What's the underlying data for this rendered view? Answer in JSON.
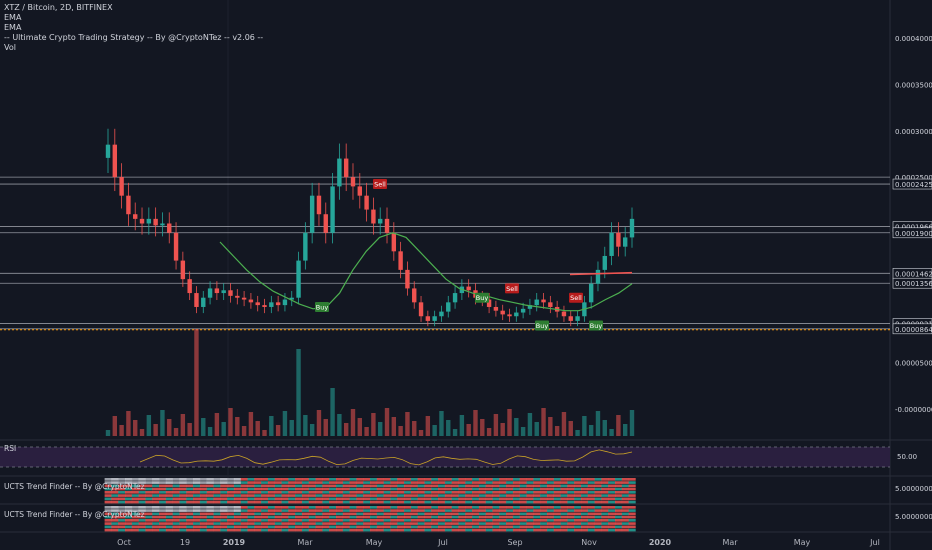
{
  "legend": {
    "symbol": "XTZ / Bitcoin, 2D, BITFINEX",
    "ind1": "EMA",
    "ind2": "EMA",
    "ind3": "-- Ultimate Crypto Trading Strategy -- By @CryptoNTez -- v2.06 --",
    "ind4": "Vol"
  },
  "panes": {
    "rsi": "RSI",
    "trend1": "UCTS Trend Finder -- By @CryptoNTez",
    "trend2": "UCTS Trend Finder -- By @CryptoNTez"
  },
  "colors": {
    "bg": "#131722",
    "up": "#26a69a",
    "down": "#ef5350",
    "ema": "#4caf50",
    "hline": "#b2b5be",
    "orange": "#ff9800",
    "rsi_band": "#2a1f3f",
    "rsi_line": "#c9a227"
  },
  "chart_data": {
    "type": "candlestick",
    "y_axis_labels": [
      "0.00040000",
      "0.00035000",
      "0.00030000",
      "0.00025000",
      "0.00024254",
      "0.00019668",
      "0.00019000",
      "0.00014629",
      "0.00013560",
      "0.00009211",
      "0.00008647",
      "0.00005000",
      "-0.00000000"
    ],
    "x_axis_labels": [
      "Oct",
      "19",
      "2019",
      "Mar",
      "May",
      "Jul",
      "Sep",
      "Nov",
      "2020",
      "Mar",
      "May",
      "Jul"
    ],
    "horizontal_levels": [
      0.00025,
      0.00024254,
      0.00019668,
      0.00019,
      0.00014629,
      0.0001356,
      9.211e-05,
      8.647e-05
    ],
    "rsi_axis_label": "50.00",
    "trend_axis_labels": [
      "5.00000000",
      "5.00000000"
    ],
    "signals": [
      {
        "label": "Sell",
        "type": "sell",
        "t": 0.00024254
      },
      {
        "label": "Buy",
        "type": "buy",
        "t": 0.00011
      },
      {
        "label": "Buy",
        "type": "buy",
        "t": 0.00012
      },
      {
        "label": "Sell",
        "type": "sell",
        "t": 0.00013
      },
      {
        "label": "Buy",
        "type": "buy",
        "t": 9e-05
      },
      {
        "label": "Sell",
        "type": "sell",
        "t": 0.00012
      },
      {
        "label": "Buy",
        "type": "buy",
        "t": 9e-05
      }
    ],
    "close_path": [
      [
        0.000285,
        1
      ],
      [
        0.00025,
        0
      ],
      [
        0.00023,
        0
      ],
      [
        0.00021,
        0
      ],
      [
        0.000205,
        1
      ],
      [
        0.0002,
        0
      ],
      [
        0.000205,
        1
      ],
      [
        0.000198,
        0
      ],
      [
        0.0002,
        1
      ],
      [
        0.00019,
        0
      ],
      [
        0.00016,
        0
      ],
      [
        0.00014,
        0
      ],
      [
        0.000125,
        0
      ],
      [
        0.00011,
        0
      ],
      [
        0.00012,
        1
      ],
      [
        0.00013,
        1
      ],
      [
        0.000125,
        0
      ],
      [
        0.000128,
        1
      ],
      [
        0.000122,
        0
      ],
      [
        0.00012,
        0
      ],
      [
        0.000118,
        0
      ],
      [
        0.000115,
        0
      ],
      [
        0.000112,
        0
      ],
      [
        0.00011,
        0
      ],
      [
        0.000115,
        1
      ],
      [
        0.000112,
        0
      ],
      [
        0.000118,
        1
      ],
      [
        0.00012,
        1
      ],
      [
        0.00016,
        1
      ],
      [
        0.00019,
        1
      ],
      [
        0.00023,
        1
      ],
      [
        0.00021,
        0
      ],
      [
        0.00019,
        0
      ],
      [
        0.00024,
        1
      ],
      [
        0.00027,
        1
      ],
      [
        0.00025,
        0
      ],
      [
        0.00024,
        0
      ],
      [
        0.00023,
        0
      ],
      [
        0.000215,
        0
      ],
      [
        0.0002,
        0
      ],
      [
        0.000205,
        1
      ],
      [
        0.00019,
        0
      ],
      [
        0.00017,
        0
      ],
      [
        0.00015,
        0
      ],
      [
        0.00013,
        0
      ],
      [
        0.000115,
        0
      ],
      [
        0.0001,
        0
      ],
      [
        9.5e-05,
        0
      ],
      [
        0.0001,
        1
      ],
      [
        0.000105,
        1
      ],
      [
        0.000115,
        1
      ],
      [
        0.000125,
        1
      ],
      [
        0.000132,
        1
      ],
      [
        0.000128,
        0
      ],
      [
        0.00012,
        0
      ],
      [
        0.000118,
        0
      ],
      [
        0.00011,
        0
      ],
      [
        0.000106,
        0
      ],
      [
        0.000102,
        0
      ],
      [
        0.0001,
        0
      ],
      [
        0.000104,
        1
      ],
      [
        0.000108,
        1
      ],
      [
        0.000112,
        1
      ],
      [
        0.000118,
        1
      ],
      [
        0.000115,
        0
      ],
      [
        0.00011,
        0
      ],
      [
        0.000105,
        0
      ],
      [
        0.0001,
        0
      ],
      [
        9.5e-05,
        0
      ],
      [
        0.0001,
        1
      ],
      [
        0.000115,
        1
      ],
      [
        0.000135,
        1
      ],
      [
        0.00015,
        1
      ],
      [
        0.000165,
        1
      ],
      [
        0.00019,
        1
      ],
      [
        0.000175,
        0
      ],
      [
        0.000185,
        1
      ],
      [
        0.000205,
        1
      ]
    ],
    "ema_path": [
      [
        0.00018,
        0
      ],
      [
        0.000165,
        0
      ],
      [
        0.00015,
        0
      ],
      [
        0.000137,
        0
      ],
      [
        0.000127,
        0
      ],
      [
        0.00012,
        0
      ],
      [
        0.000113,
        0
      ],
      [
        0.000108,
        0
      ],
      [
        0.00011,
        1
      ],
      [
        0.000125,
        1
      ],
      [
        0.00015,
        1
      ],
      [
        0.00017,
        1
      ],
      [
        0.000185,
        1
      ],
      [
        0.00019,
        1
      ],
      [
        0.000185,
        0
      ],
      [
        0.00017,
        0
      ],
      [
        0.000155,
        0
      ],
      [
        0.00014,
        0
      ],
      [
        0.00013,
        0
      ],
      [
        0.000125,
        0
      ],
      [
        0.000122,
        0
      ],
      [
        0.000118,
        0
      ],
      [
        0.000115,
        0
      ],
      [
        0.000112,
        0
      ],
      [
        0.00011,
        0
      ],
      [
        0.000108,
        0
      ],
      [
        0.000106,
        0
      ],
      [
        0.000106,
        0
      ],
      [
        0.00011,
        1
      ],
      [
        0.000118,
        1
      ],
      [
        0.000125,
        1
      ],
      [
        0.000135,
        1
      ]
    ]
  }
}
